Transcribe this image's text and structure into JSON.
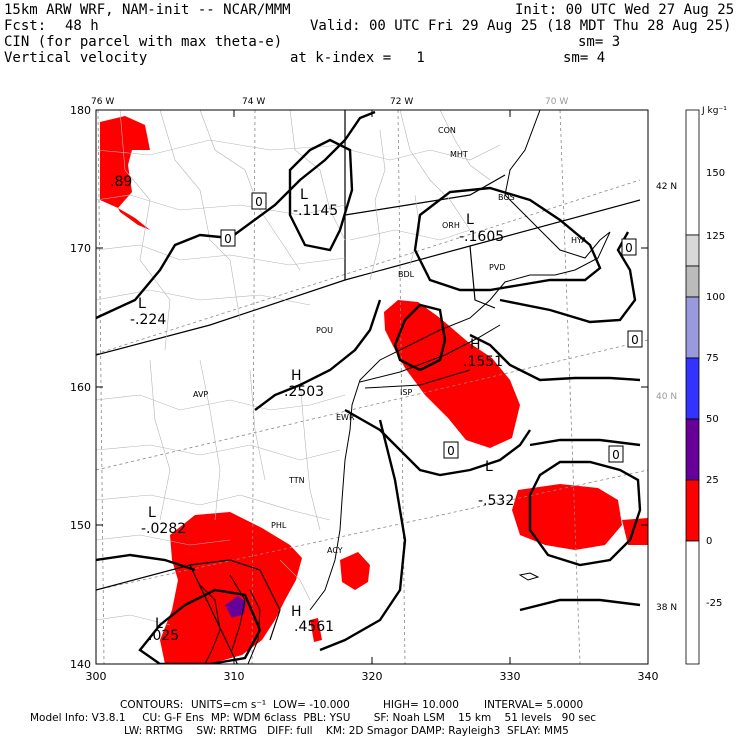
{
  "header": {
    "model": "15km ARW WRF, NAM-init -- NCAR/MMM",
    "init": "Init: 00 UTC Wed 27 Aug 25",
    "fcst_label": "Fcst:",
    "fcst_value": "48 h",
    "valid": "Valid: 00 UTC Fri 29 Aug 25 (18 MDT Thu 28 Aug 25)",
    "field1": "CIN (for parcel with max theta-e)",
    "sm1": "sm= 3",
    "field2": "Vertical velocity",
    "kindex": "at k-index =   1",
    "sm2": "sm= 4"
  },
  "axes": {
    "x_ticks": [
      "300",
      "310",
      "320",
      "330",
      "340"
    ],
    "y_ticks": [
      "140",
      "150",
      "160",
      "170",
      "180"
    ],
    "lon_labels": [
      "76 W",
      "74 W",
      "72 W",
      "70 W"
    ],
    "lat_labels": [
      "42 N",
      "40 N",
      "38 N"
    ]
  },
  "colorbar": {
    "units": "J kg⁻¹",
    "labels": [
      "150",
      "125",
      "100",
      "75",
      "50",
      "25",
      "0",
      "-25"
    ],
    "colors": {
      "white": "#ffffff",
      "light_gray": "#d8d8d8",
      "gray": "#bbbbbb",
      "lavender": "#9999dd",
      "blue": "#3333ff",
      "purple": "#660099",
      "red": "#ff0000"
    }
  },
  "map_labels": {
    "cities": [
      "CON",
      "MHT",
      "BOS",
      "ORH",
      "PVD",
      "BDL",
      "POU",
      "ISP",
      "AVP",
      "EWR",
      "TTN",
      "PHL",
      "ACY",
      "HYA"
    ],
    "minima": [
      {
        "symbol": "L",
        "value": "-.1145"
      },
      {
        "symbol": "L",
        "value": "-.1605"
      },
      {
        "symbol": "L",
        "value": "-.224"
      },
      {
        "symbol": "L",
        "value": "-.532"
      },
      {
        "symbol": "L",
        "value": "-.0282"
      },
      {
        "symbol": "L",
        "value": ".025"
      }
    ],
    "maxima": [
      {
        "symbol": "H",
        "value": ".2503"
      },
      {
        "symbol": "H",
        "value": ".1551"
      },
      {
        "symbol": "H",
        "value": ".4561"
      },
      {
        "symbol": "",
        "value": ".89"
      }
    ],
    "contour_zero_label": "0"
  },
  "footer": {
    "contours_label": "CONTOURS:",
    "units": "UNITS=cm s⁻¹",
    "low": "LOW= -10.000",
    "high": "HIGH= 10.000",
    "interval": "INTERVAL= 5.0000",
    "model_info": "Model Info: V3.8.1     CU: G-F Ens  MP: WDM 6class  PBL: YSU       SF: Noah LSM    15 km    51 levels   90 sec",
    "model_info2": "LW: RRTMG    SW: RRTMG   DIFF: full    KM: 2D Smagor DAMP: Rayleigh3  SFLAY: MM5"
  }
}
